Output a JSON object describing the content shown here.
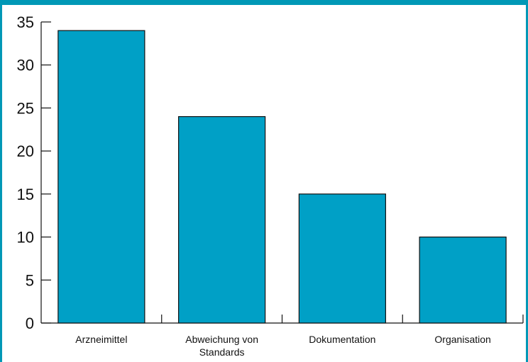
{
  "chart_data": {
    "type": "bar",
    "categories": [
      [
        "Arzneimittel"
      ],
      [
        "Abweichung von",
        "Standards"
      ],
      [
        "Dokumentation"
      ],
      [
        "Organisation"
      ]
    ],
    "values": [
      34,
      24,
      15,
      10
    ],
    "ylim": [
      0,
      35
    ],
    "yticks": [
      0,
      5,
      10,
      15,
      20,
      25,
      30,
      35
    ],
    "grid": false,
    "legend": "none",
    "colors": {
      "bar": "#00a0c6",
      "bar_stroke": "#111111",
      "frame": "#0098b6",
      "axis": "#111111"
    }
  }
}
